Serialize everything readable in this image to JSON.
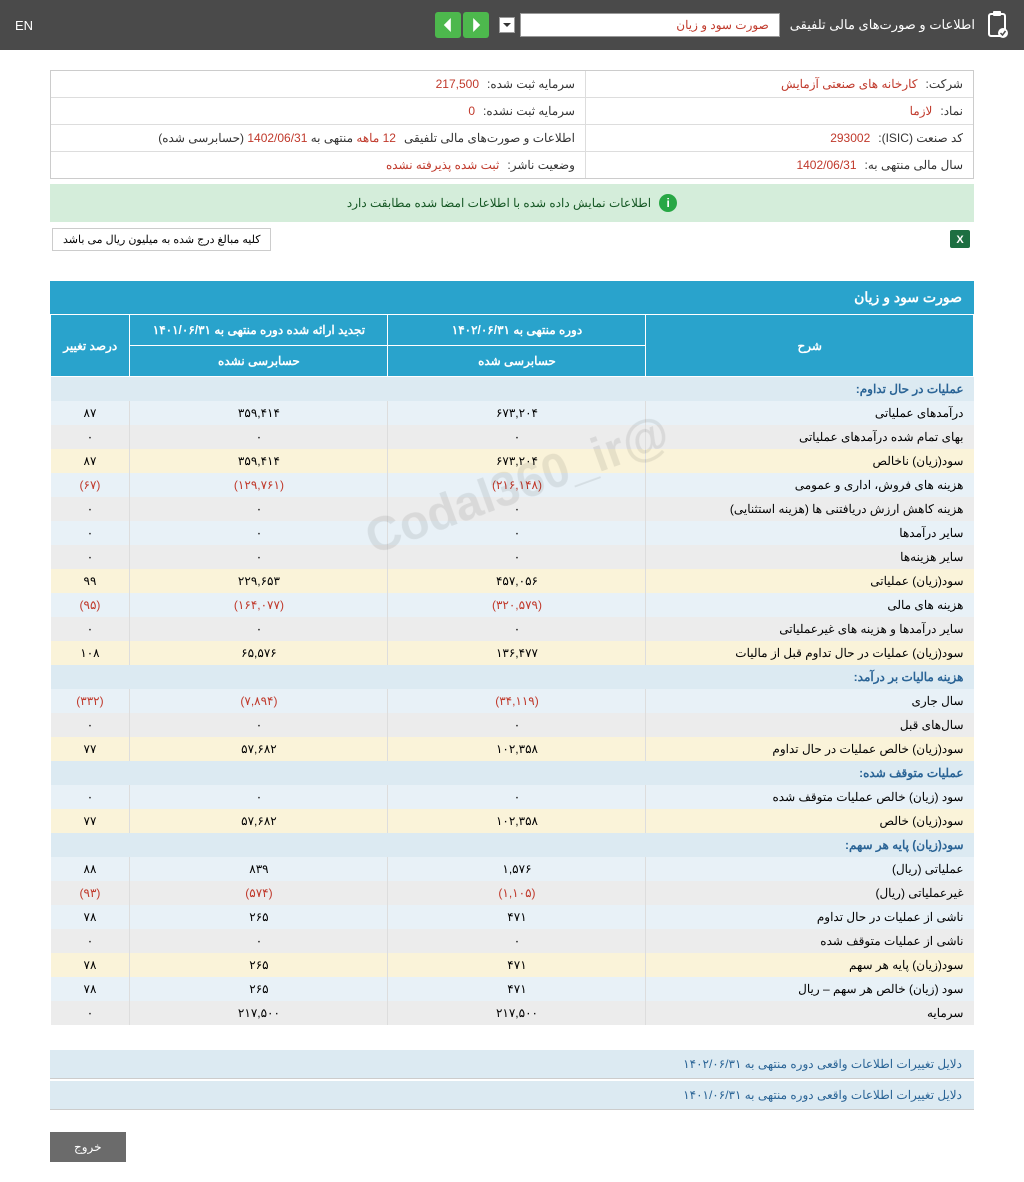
{
  "topbar": {
    "title": "اطلاعات و صورت‌های مالی تلفیقی",
    "dropdown": "صورت سود و زیان",
    "lang": "EN"
  },
  "info": {
    "company_label": "شرکت:",
    "company_value": "کارخانه های صنعتی آزمایش",
    "capital_reg_label": "سرمایه ثبت شده:",
    "capital_reg_value": "217,500",
    "symbol_label": "نماد:",
    "symbol_value": "لازما",
    "capital_unreg_label": "سرمایه ثبت نشده:",
    "capital_unreg_value": "0",
    "isic_label": "کد صنعت (ISIC):",
    "isic_value": "293002",
    "consol_label": "اطلاعات و صورت‌های مالی تلفیقی",
    "consol_period": "12 ماهه",
    "consol_ending": "منتهی به",
    "consol_date": "1402/06/31",
    "consol_audit": "(حسابرسی شده)",
    "fy_label": "سال مالی منتهی به:",
    "fy_value": "1402/06/31",
    "status_label": "وضعیت ناشر:",
    "status_value": "ثبت شده پذیرفته نشده"
  },
  "banner": "اطلاعات نمایش داده شده با اطلاعات امضا شده مطابقت دارد",
  "note": "کلیه مبالغ درج شده به میلیون ریال می باشد",
  "tableTitle": "صورت سود و زیان",
  "headers": {
    "desc": "شرح",
    "period_current": "دوره منتهی به ۱۴۰۲/۰۶/۳۱",
    "period_prev": "تجدید ارائه شده دوره منتهی به ۱۴۰۱/۰۶/۳۱",
    "pct": "درصد تغییر",
    "audited": "حسابرسی شده",
    "unaudited": "حسابرسی نشده"
  },
  "rows": [
    {
      "type": "header",
      "desc": "عملیات در حال تداوم:"
    },
    {
      "type": "blue",
      "desc": "درآمدهای عملیاتی",
      "c": "۶۷۳,۲۰۴",
      "p": "۳۵۹,۴۱۴",
      "pct": "۸۷"
    },
    {
      "type": "gray",
      "desc": "بهای تمام شده درآمدهای عملیاتی",
      "c": "۰",
      "p": "۰",
      "pct": "۰"
    },
    {
      "type": "yellow",
      "desc": "سود(زیان) ناخالص",
      "c": "۶۷۳,۲۰۴",
      "p": "۳۵۹,۴۱۴",
      "pct": "۸۷"
    },
    {
      "type": "blue",
      "desc": "هزینه های فروش، اداری و عمومی",
      "c": "(۲۱۶,۱۴۸)",
      "p": "(۱۲۹,۷۶۱)",
      "pct": "(۶۷)",
      "neg": true
    },
    {
      "type": "gray",
      "desc": "هزینه کاهش ارزش دریافتنی ها (هزینه استثنایی)",
      "c": "۰",
      "p": "۰",
      "pct": "۰"
    },
    {
      "type": "blue",
      "desc": "سایر درآمدها",
      "c": "۰",
      "p": "۰",
      "pct": "۰"
    },
    {
      "type": "gray",
      "desc": "سایر هزینه‌ها",
      "c": "۰",
      "p": "۰",
      "pct": "۰"
    },
    {
      "type": "yellow",
      "desc": "سود(زیان) عملیاتی",
      "c": "۴۵۷,۰۵۶",
      "p": "۲۲۹,۶۵۳",
      "pct": "۹۹"
    },
    {
      "type": "blue",
      "desc": "هزینه های مالی",
      "c": "(۳۲۰,۵۷۹)",
      "p": "(۱۶۴,۰۷۷)",
      "pct": "(۹۵)",
      "neg": true
    },
    {
      "type": "gray",
      "desc": "سایر درآمدها و هزینه های غیرعملیاتی",
      "c": "۰",
      "p": "۰",
      "pct": "۰"
    },
    {
      "type": "yellow",
      "desc": "سود(زیان) عملیات در حال تداوم قبل از مالیات",
      "c": "۱۳۶,۴۷۷",
      "p": "۶۵,۵۷۶",
      "pct": "۱۰۸"
    },
    {
      "type": "header",
      "desc": "هزینه مالیات بر درآمد:"
    },
    {
      "type": "blue",
      "desc": "سال جاری",
      "c": "(۳۴,۱۱۹)",
      "p": "(۷,۸۹۴)",
      "pct": "(۳۳۲)",
      "neg": true
    },
    {
      "type": "gray",
      "desc": "سال‌های قبل",
      "c": "۰",
      "p": "۰",
      "pct": "۰"
    },
    {
      "type": "yellow",
      "desc": "سود(زیان) خالص عملیات در حال تداوم",
      "c": "۱۰۲,۳۵۸",
      "p": "۵۷,۶۸۲",
      "pct": "۷۷"
    },
    {
      "type": "header",
      "desc": "عملیات متوقف شده:"
    },
    {
      "type": "blue",
      "desc": "سود (زیان) خالص عملیات متوقف شده",
      "c": "۰",
      "p": "۰",
      "pct": "۰"
    },
    {
      "type": "yellow",
      "desc": "سود(زیان) خالص",
      "c": "۱۰۲,۳۵۸",
      "p": "۵۷,۶۸۲",
      "pct": "۷۷"
    },
    {
      "type": "header",
      "desc": "سود(زیان) پایه هر سهم:"
    },
    {
      "type": "blue",
      "desc": "عملیاتی (ریال)",
      "c": "۱,۵۷۶",
      "p": "۸۳۹",
      "pct": "۸۸"
    },
    {
      "type": "gray",
      "desc": "غیرعملیاتی (ریال)",
      "c": "(۱,۱۰۵)",
      "p": "(۵۷۴)",
      "pct": "(۹۳)",
      "neg": true
    },
    {
      "type": "blue",
      "desc": "ناشی از عملیات در حال تداوم",
      "c": "۴۷۱",
      "p": "۲۶۵",
      "pct": "۷۸"
    },
    {
      "type": "gray",
      "desc": "ناشی از عملیات متوقف شده",
      "c": "۰",
      "p": "۰",
      "pct": "۰"
    },
    {
      "type": "yellow",
      "desc": "سود(زیان) پایه هر سهم",
      "c": "۴۷۱",
      "p": "۲۶۵",
      "pct": "۷۸"
    },
    {
      "type": "blue",
      "desc": "سود (زیان) خالص هر سهم – ریال",
      "c": "۴۷۱",
      "p": "۲۶۵",
      "pct": "۷۸"
    },
    {
      "type": "gray",
      "desc": "سرمایه",
      "c": "۲۱۷,۵۰۰",
      "p": "۲۱۷,۵۰۰",
      "pct": "۰"
    }
  ],
  "reasons": {
    "r1": "دلایل تغییرات اطلاعات واقعی دوره منتهی به ۱۴۰۲/۰۶/۳۱",
    "r2": "دلایل تغییرات اطلاعات واقعی دوره منتهی به ۱۴۰۱/۰۶/۳۱"
  },
  "exit": "خروج",
  "watermark": "@Codal360_ir"
}
